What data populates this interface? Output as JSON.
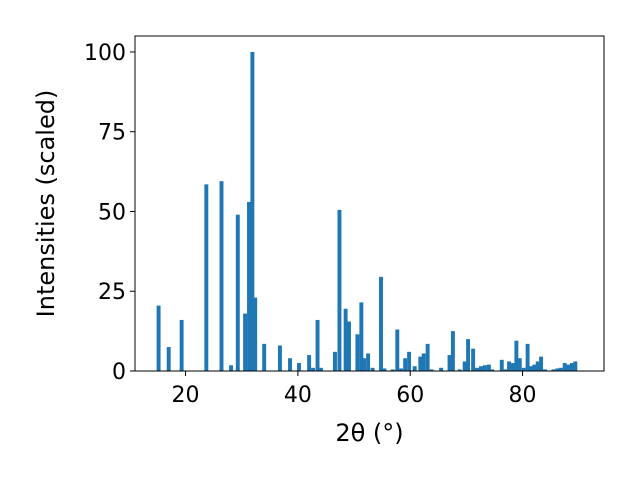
{
  "chart_data": {
    "type": "bar",
    "xlabel": "2θ (°)",
    "ylabel": "Intensities (scaled)",
    "xlim": [
      11,
      94.5
    ],
    "ylim": [
      0,
      105
    ],
    "x_ticks": [
      20,
      40,
      60,
      80
    ],
    "y_ticks": [
      0,
      25,
      50,
      75,
      100
    ],
    "grid": false,
    "bar_color": "#1f77b4",
    "bar_width": 0.7,
    "x": [
      15.2,
      17.0,
      19.3,
      23.7,
      26.4,
      28.1,
      29.3,
      30.6,
      31.3,
      31.9,
      32.4,
      34.0,
      36.8,
      38.6,
      40.2,
      42.0,
      42.7,
      43.5,
      44.1,
      46.6,
      47.4,
      48.5,
      49.1,
      50.6,
      51.3,
      51.8,
      52.5,
      53.3,
      54.8,
      55.4,
      56.9,
      57.7,
      58.4,
      59.1,
      59.8,
      60.8,
      61.8,
      62.4,
      63.1,
      63.8,
      65.5,
      67.0,
      67.6,
      68.8,
      69.7,
      70.3,
      71.2,
      71.9,
      72.6,
      73.3,
      74.0,
      74.6,
      76.3,
      77.0,
      77.6,
      78.3,
      78.9,
      79.5,
      80.2,
      80.9,
      81.5,
      82.1,
      82.7,
      83.3,
      84.0,
      85.5,
      86.2,
      86.8,
      87.5,
      88.1,
      88.8,
      89.4
    ],
    "values": [
      20.5,
      7.5,
      16.0,
      58.5,
      59.5,
      1.8,
      49.0,
      18.0,
      53.0,
      100.0,
      23.0,
      8.5,
      8.0,
      4.0,
      2.5,
      5.0,
      1.0,
      16.0,
      1.0,
      6.0,
      50.5,
      19.5,
      15.5,
      11.5,
      21.5,
      4.0,
      5.5,
      1.0,
      29.5,
      0.8,
      0.5,
      13.0,
      0.8,
      4.0,
      6.0,
      1.5,
      4.5,
      5.5,
      8.5,
      0.5,
      1.0,
      5.0,
      12.5,
      0.5,
      3.0,
      10.0,
      7.0,
      1.0,
      1.5,
      1.8,
      2.0,
      0.5,
      3.5,
      0.5,
      3.0,
      2.5,
      9.5,
      4.0,
      1.0,
      8.5,
      1.5,
      2.0,
      3.0,
      4.5,
      0.5,
      0.5,
      0.8,
      1.0,
      2.5,
      2.0,
      2.5,
      3.0
    ]
  }
}
